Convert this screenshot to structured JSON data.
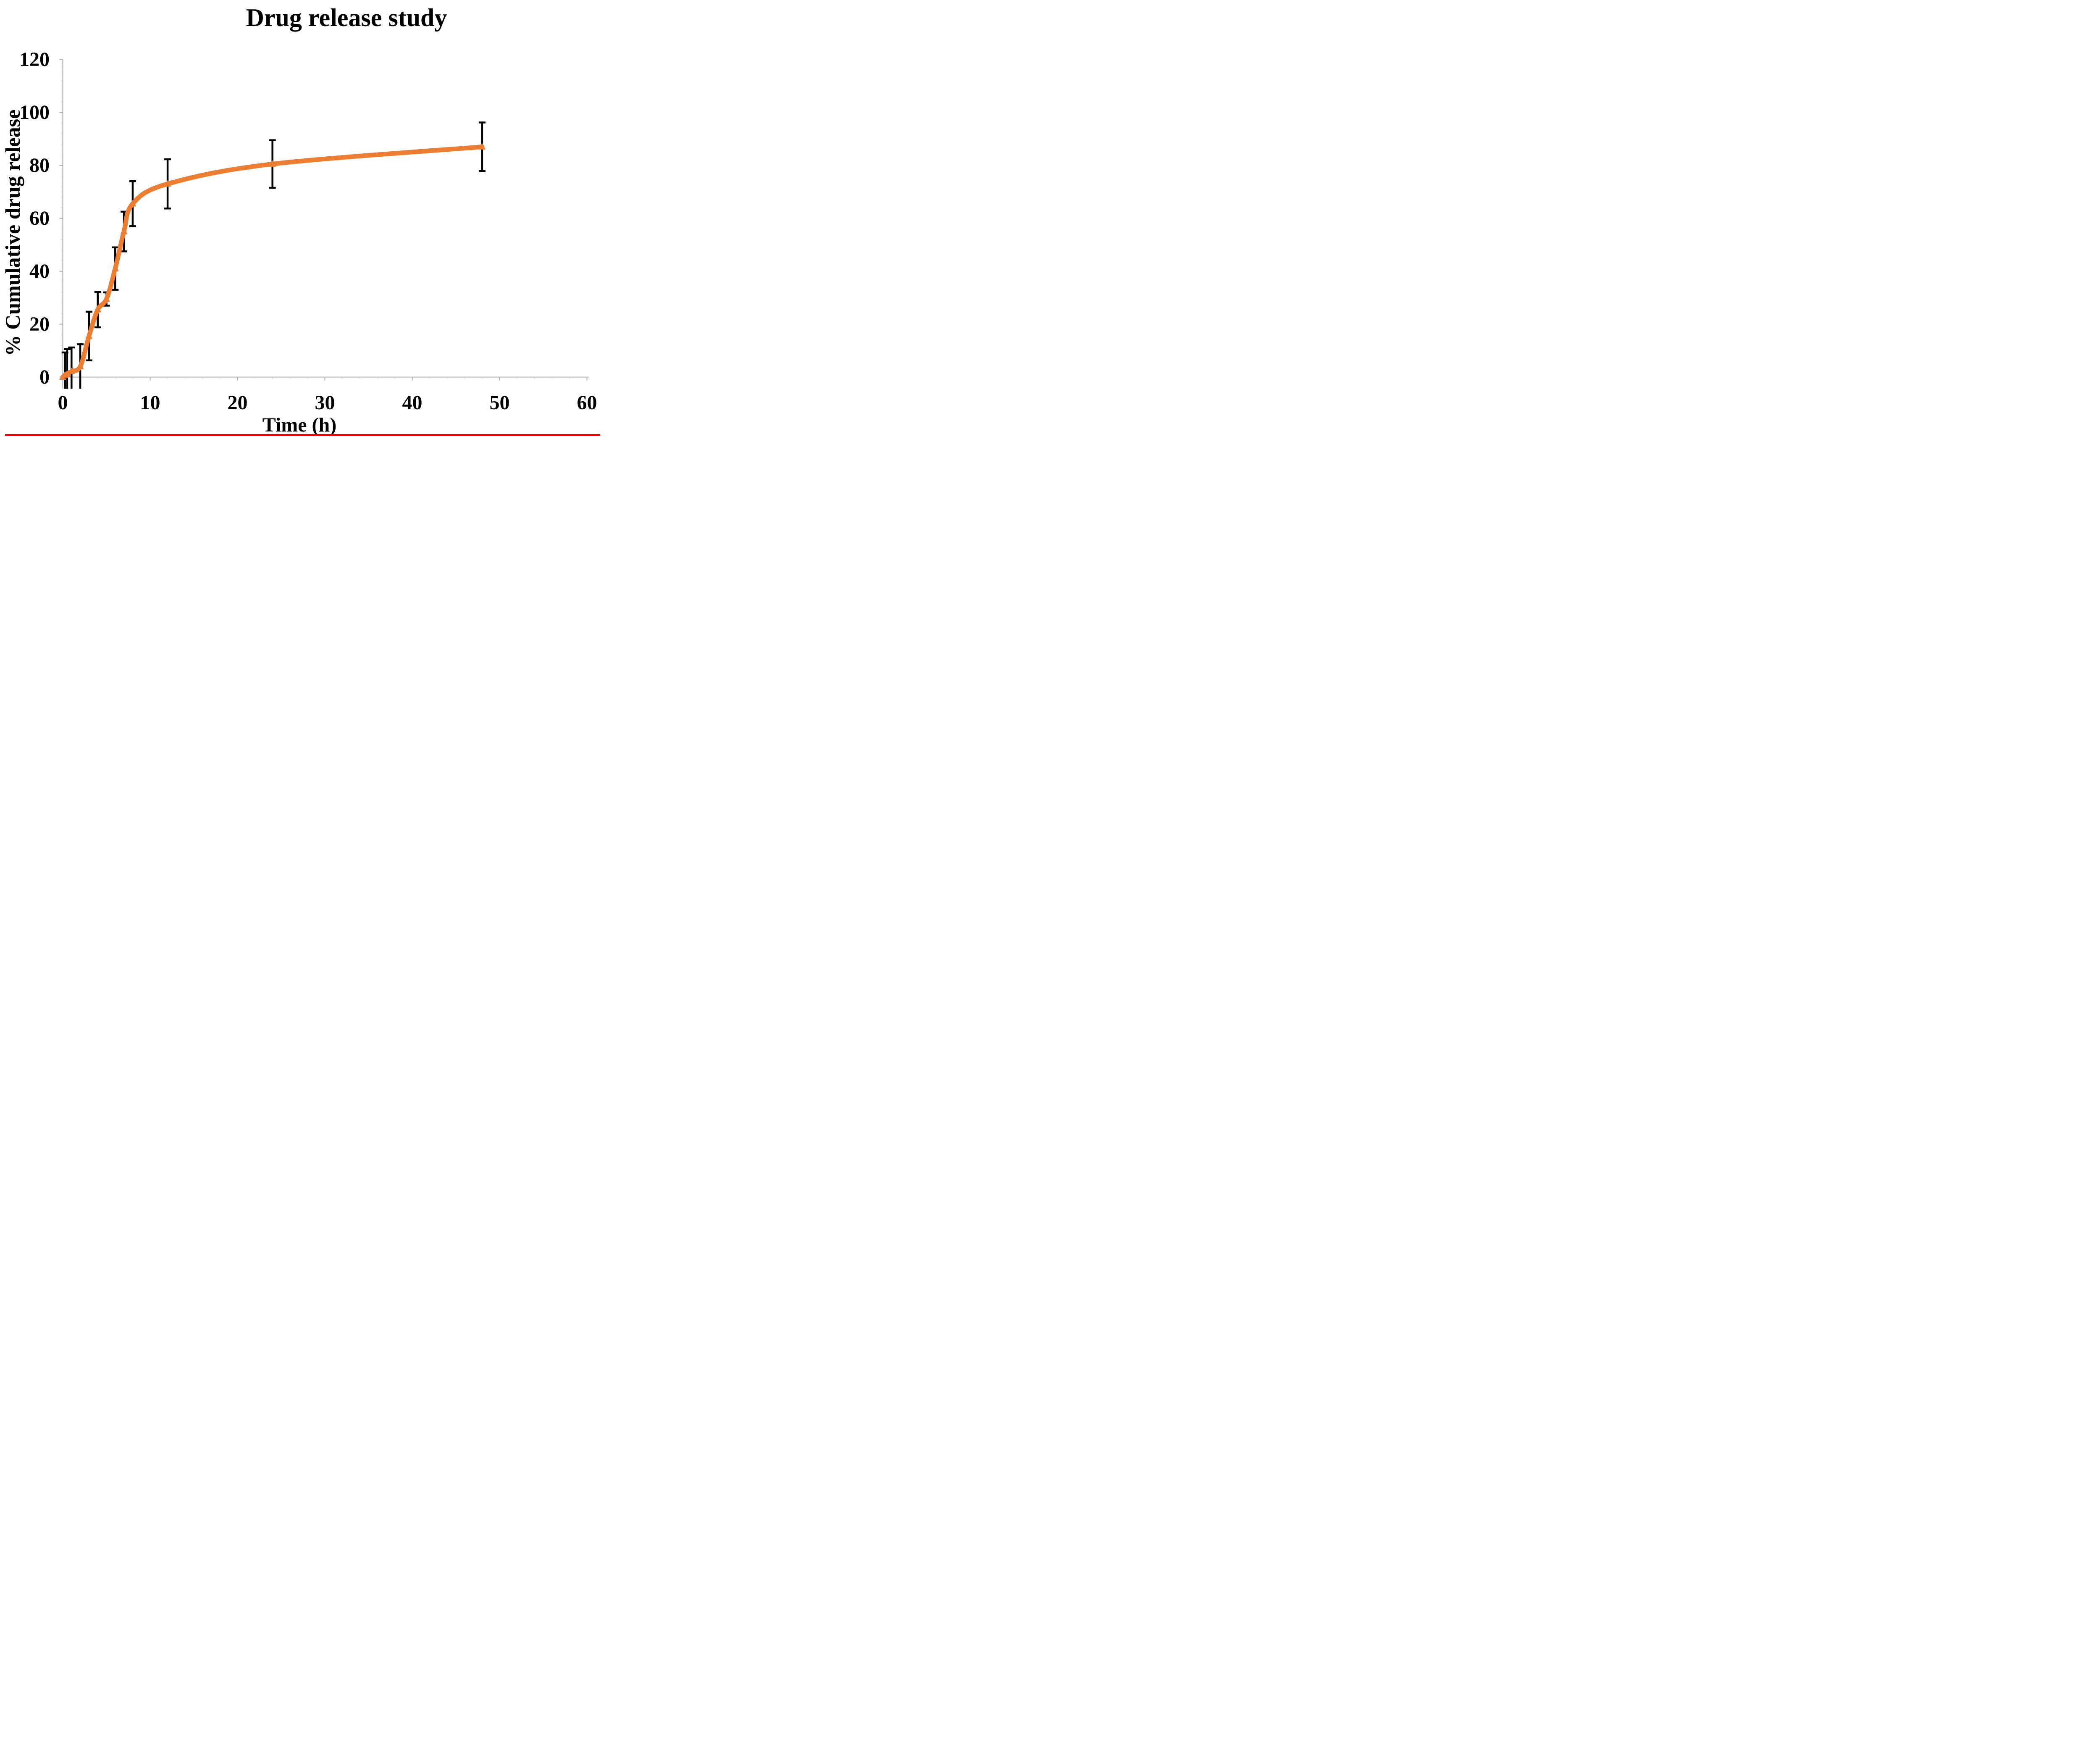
{
  "page": {
    "background": "#FFFFFF"
  },
  "chart_data": {
    "type": "line",
    "title": "Drug release study",
    "xlabel": "Time (h)",
    "ylabel": "% Cumulative drug release",
    "xlim": [
      0,
      60
    ],
    "ylim": [
      0,
      120
    ],
    "x_ticks": [
      0,
      10,
      20,
      30,
      40,
      50,
      60
    ],
    "y_ticks": [
      0,
      20,
      40,
      60,
      80,
      100,
      120
    ],
    "grid": false,
    "legend": "none",
    "axis_color": "#ABABAB",
    "minor_tick_color": "#C9C9C9",
    "error_bar_color": "#000000",
    "series": [
      {
        "name": "Cumulative drug release (%)",
        "color": "#ED7D31",
        "marker": "triangle-up",
        "smooth": true,
        "x": [
          0,
          0.25,
          0.5,
          1,
          2,
          3,
          4,
          5,
          6,
          7,
          8,
          12,
          24,
          48
        ],
        "y": [
          0,
          0.8,
          1.2,
          2.2,
          4,
          15.5,
          25.5,
          29.5,
          41,
          55,
          65.5,
          73,
          80.5,
          87
        ],
        "sd": [
          0,
          8.5,
          9.4,
          9.0,
          8.4,
          9.2,
          6.7,
          2.5,
          8.0,
          7.5,
          8.5,
          9.3,
          9.0,
          9.2
        ]
      }
    ]
  },
  "footer": {
    "accent_line_color": "#EC0202"
  }
}
